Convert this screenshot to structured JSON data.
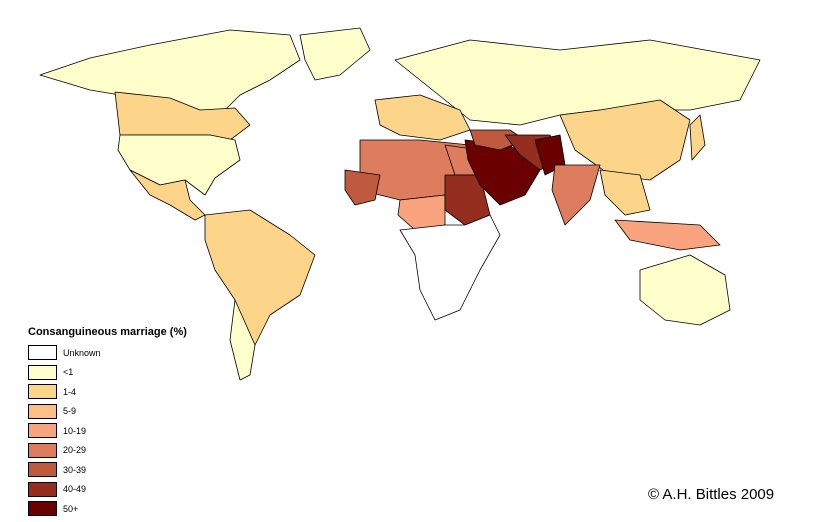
{
  "legend": {
    "title": "Consanguineous marriage (%)",
    "items": [
      {
        "label": "Unknown",
        "color": "#ffffff"
      },
      {
        "label": "<1",
        "color": "#ffffcc"
      },
      {
        "label": "1-4",
        "color": "#fdd58a"
      },
      {
        "label": "5-9",
        "color": "#fcbf84"
      },
      {
        "label": "10-19",
        "color": "#f9a47e"
      },
      {
        "label": "20-29",
        "color": "#dd7d5d"
      },
      {
        "label": "30-39",
        "color": "#bf5a3e"
      },
      {
        "label": "40-49",
        "color": "#962e1f"
      },
      {
        "label": "50+",
        "color": "#6b0000"
      }
    ]
  },
  "copyright": "© A.H. Bittles 2009"
}
